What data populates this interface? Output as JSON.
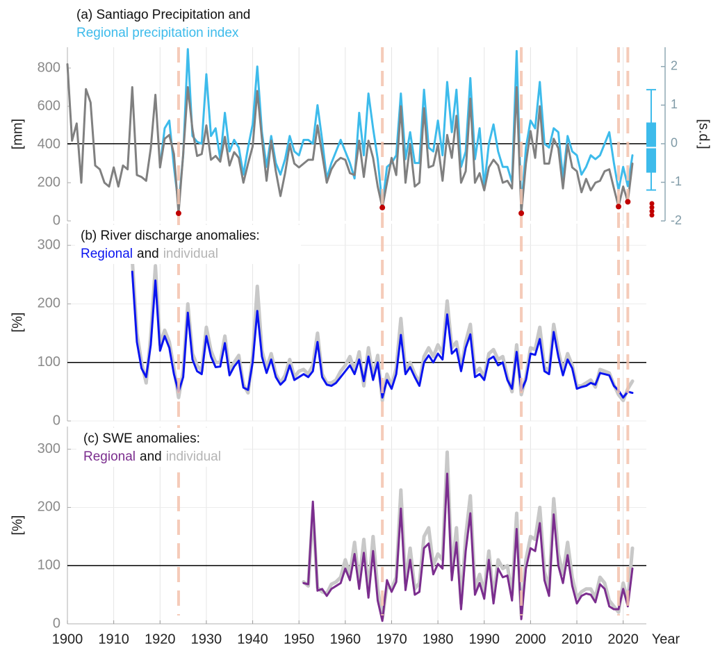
{
  "chart_data": {
    "type": "line",
    "xlabel": "Year",
    "xlim": [
      1900,
      2025
    ],
    "xticks": [
      1900,
      1910,
      1920,
      1930,
      1940,
      1950,
      1960,
      1970,
      1980,
      1990,
      2000,
      2010,
      2020
    ],
    "x": [
      1900,
      1901,
      1902,
      1903,
      1904,
      1905,
      1906,
      1907,
      1908,
      1909,
      1910,
      1911,
      1912,
      1913,
      1914,
      1915,
      1916,
      1917,
      1918,
      1919,
      1920,
      1921,
      1922,
      1923,
      1924,
      1925,
      1926,
      1927,
      1928,
      1929,
      1930,
      1931,
      1932,
      1933,
      1934,
      1935,
      1936,
      1937,
      1938,
      1939,
      1940,
      1941,
      1942,
      1943,
      1944,
      1945,
      1946,
      1947,
      1948,
      1949,
      1950,
      1951,
      1952,
      1953,
      1954,
      1955,
      1956,
      1957,
      1958,
      1959,
      1960,
      1961,
      1962,
      1963,
      1964,
      1965,
      1966,
      1967,
      1968,
      1969,
      1970,
      1971,
      1972,
      1973,
      1974,
      1975,
      1976,
      1977,
      1978,
      1979,
      1980,
      1981,
      1982,
      1983,
      1984,
      1985,
      1986,
      1987,
      1988,
      1989,
      1990,
      1991,
      1992,
      1993,
      1994,
      1995,
      1996,
      1997,
      1998,
      1999,
      2000,
      2001,
      2002,
      2003,
      2004,
      2005,
      2006,
      2007,
      2008,
      2009,
      2010,
      2011,
      2012,
      2013,
      2014,
      2015,
      2016,
      2017,
      2018,
      2019,
      2020,
      2021,
      2022
    ],
    "dry_years": [
      1924,
      1968,
      1998,
      2019,
      2021
    ],
    "dry_color": "#f4c3ad",
    "highlight_color": "#c00000",
    "panels": [
      {
        "title": "(a) Santiago Precipitation and",
        "ylabel": "[mm]",
        "ylim": [
          0,
          909
        ],
        "yticks": [
          0,
          200,
          400,
          600,
          800
        ],
        "y2label": "[s.d.]",
        "y2lim": [
          -2,
          2.5
        ],
        "y2ticks": [
          -2,
          -1,
          0,
          1,
          2
        ],
        "grid": true,
        "refline": {
          "value": 0,
          "axis": "y2"
        },
        "series": [
          {
            "color": "#808080",
            "values": [
              820,
              420,
              510,
              200,
              690,
              620,
              290,
              270,
              200,
              180,
              280,
              180,
              290,
              270,
              700,
              240,
              230,
              210,
              380,
              660,
              280,
              430,
              450,
              350,
              40,
              350,
              700,
              480,
              340,
              350,
              500,
              320,
              340,
              310,
              440,
              290,
              360,
              330,
              200,
              300,
              390,
              680,
              430,
              210,
              420,
              260,
              130,
              250,
              400,
              300,
              280,
              300,
              320,
              320,
              500,
              350,
              200,
              270,
              310,
              330,
              320,
              250,
              240,
              420,
              230,
              420,
              330,
              180,
              70,
              200,
              330,
              240,
              600,
              200,
              400,
              180,
              200,
              590,
              280,
              290,
              400,
              210,
              450,
              330,
              550,
              200,
              260,
              640,
              200,
              250,
              160,
              280,
              320,
              290,
              200,
              210,
              170,
              700,
              40,
              300,
              470,
              330,
              600,
              300,
              300,
              430,
              380,
              170,
              400,
              280,
              260,
              150,
              220,
              160,
              200,
              210,
              260,
              270,
              170,
              75,
              180,
              100,
              300
            ]
          },
          {
            "name": "Regional precipitation index",
            "color": "#3dbbeb",
            "axis": "y2",
            "values": [
              null,
              null,
              null,
              null,
              null,
              null,
              null,
              null,
              null,
              null,
              null,
              null,
              null,
              null,
              null,
              null,
              null,
              null,
              null,
              null,
              -0.6,
              0.4,
              0.6,
              -0.6,
              -1.6,
              -0.3,
              2.45,
              0.2,
              0.05,
              0,
              1.8,
              0.2,
              0.4,
              -0.4,
              0.8,
              -0.2,
              0.1,
              -0.1,
              -0.8,
              -0.1,
              0.5,
              2.0,
              0.3,
              -0.6,
              0.2,
              -0.5,
              -0.8,
              -0.4,
              0.2,
              -0.2,
              -0.3,
              0.1,
              0.1,
              0,
              1.0,
              0.1,
              -0.9,
              -0.5,
              -0.2,
              0.1,
              -0.2,
              -0.5,
              -0.9,
              0.8,
              -0.3,
              1.3,
              0.4,
              -0.4,
              -1.6,
              -0.6,
              -0.5,
              -0.3,
              1.3,
              -0.4,
              0.3,
              -0.5,
              -0.5,
              1.4,
              -0.1,
              -0.2,
              0.6,
              -0.3,
              1.6,
              0.3,
              1.4,
              -0.6,
              -0.2,
              1.7,
              -0.4,
              0.4,
              -1.1,
              0,
              0.5,
              -0.2,
              -0.6,
              -0.6,
              -1.0,
              2.4,
              -1.7,
              -0.1,
              0.6,
              0.4,
              1.6,
              0,
              -0.1,
              0.4,
              0.3,
              -0.9,
              0.2,
              -0.2,
              -0.3,
              -0.8,
              -0.6,
              -0.3,
              -0.4,
              -0.3,
              0,
              0.3,
              -0.5,
              -1.2,
              -0.6,
              -1.1,
              -0.3
            ]
          }
        ],
        "boxplot": {
          "color": "#3dbbeb",
          "whislo": -1.2,
          "q1": -0.75,
          "med": -0.1,
          "q3": 0.55,
          "whishi": 1.4,
          "outliers": [
            -1.55,
            -1.65,
            -1.75,
            -1.85
          ]
        }
      },
      {
        "title": "(b) River discharge anomalies:",
        "joiner": "and",
        "ylabel": "[%]",
        "ylim": [
          0,
          337
        ],
        "yticks": [
          0,
          100,
          200,
          300
        ],
        "grid": true,
        "refline": {
          "value": 100,
          "axis": "y"
        },
        "series": [
          {
            "name": "Regional",
            "color": "#0a14f0",
            "values": [
              null,
              null,
              null,
              null,
              null,
              null,
              null,
              null,
              null,
              null,
              null,
              null,
              null,
              null,
              255,
              135,
              90,
              75,
              130,
              240,
              120,
              145,
              125,
              80,
              50,
              75,
              185,
              105,
              85,
              80,
              145,
              110,
              92,
              93,
              133,
              78,
              93,
              103,
              57,
              53,
              100,
              188,
              110,
              82,
              105,
              75,
              62,
              70,
              95,
              70,
              75,
              80,
              75,
              85,
              135,
              75,
              62,
              60,
              65,
              75,
              85,
              95,
              80,
              105,
              68,
              110,
              70,
              100,
              40,
              70,
              55,
              80,
              147,
              80,
              92,
              75,
              60,
              100,
              112,
              100,
              115,
              105,
              182,
              115,
              123,
              85,
              125,
              148,
              75,
              80,
              70,
              105,
              110,
              95,
              100,
              70,
              55,
              118,
              52,
              70,
              115,
              113,
              140,
              85,
              80,
              152,
              110,
              78,
              105,
              90,
              55,
              58,
              60,
              65,
              62,
              82,
              80,
              78,
              60,
              52,
              40,
              50,
              48
            ]
          },
          {
            "name": "individual",
            "color": "#c8c8c8",
            "values": [
              null,
              null,
              null,
              null,
              null,
              null,
              null,
              null,
              null,
              null,
              null,
              null,
              null,
              null,
              275,
              150,
              100,
              65,
              145,
              265,
              130,
              155,
              135,
              90,
              40,
              85,
              200,
              115,
              95,
              85,
              160,
              120,
              100,
              100,
              145,
              85,
              100,
              112,
              62,
              48,
              110,
              230,
              120,
              90,
              115,
              80,
              65,
              78,
              105,
              75,
              85,
              88,
              80,
              95,
              150,
              80,
              65,
              65,
              70,
              85,
              95,
              110,
              85,
              118,
              60,
              125,
              75,
              112,
              35,
              80,
              60,
              90,
              175,
              85,
              100,
              80,
              65,
              110,
              125,
              110,
              130,
              115,
              205,
              125,
              135,
              90,
              135,
              165,
              82,
              90,
              75,
              115,
              122,
              105,
              110,
              75,
              50,
              130,
              45,
              75,
              125,
              122,
              160,
              92,
              85,
              165,
              120,
              85,
              115,
              95,
              60,
              60,
              65,
              70,
              58,
              88,
              85,
              82,
              62,
              45,
              35,
              55,
              68
            ]
          }
        ]
      },
      {
        "title": "(c) SWE anomalies:",
        "joiner": "and",
        "ylabel": "[%]",
        "ylim": [
          0,
          339
        ],
        "yticks": [
          0,
          100,
          200,
          300
        ],
        "grid": true,
        "refline": {
          "value": 100,
          "axis": "y"
        },
        "series": [
          {
            "name": "Regional",
            "color": "#7b2d8e",
            "values": [
              null,
              null,
              null,
              null,
              null,
              null,
              null,
              null,
              null,
              null,
              null,
              null,
              null,
              null,
              null,
              null,
              null,
              null,
              null,
              null,
              null,
              null,
              null,
              null,
              null,
              null,
              null,
              null,
              null,
              null,
              null,
              null,
              null,
              null,
              null,
              null,
              null,
              null,
              null,
              null,
              null,
              null,
              null,
              null,
              null,
              null,
              null,
              null,
              null,
              null,
              null,
              70,
              68,
              210,
              57,
              60,
              48,
              60,
              65,
              70,
              95,
              75,
              120,
              60,
              122,
              45,
              125,
              40,
              5,
              75,
              55,
              72,
              198,
              58,
              110,
              50,
              55,
              130,
              138,
              85,
              103,
              95,
              258,
              75,
              140,
              25,
              125,
              190,
              50,
              70,
              43,
              110,
              35,
              95,
              80,
              83,
              40,
              163,
              8,
              95,
              130,
              125,
              173,
              75,
              48,
              188,
              100,
              70,
              118,
              65,
              35,
              48,
              52,
              50,
              37,
              68,
              60,
              30,
              25,
              25,
              60,
              30,
              95
            ]
          },
          {
            "name": "individual",
            "color": "#c8c8c8",
            "values": [
              null,
              null,
              null,
              null,
              null,
              null,
              null,
              null,
              null,
              null,
              null,
              null,
              null,
              null,
              null,
              null,
              null,
              null,
              null,
              null,
              null,
              null,
              null,
              null,
              null,
              null,
              null,
              null,
              null,
              null,
              null,
              null,
              null,
              null,
              null,
              null,
              null,
              null,
              null,
              null,
              null,
              null,
              null,
              null,
              null,
              null,
              null,
              null,
              null,
              null,
              null,
              72,
              65,
              195,
              62,
              55,
              52,
              68,
              72,
              80,
              110,
              85,
              140,
              70,
              145,
              55,
              150,
              60,
              10,
              65,
              60,
              80,
              230,
              70,
              130,
              60,
              70,
              150,
              165,
              100,
              120,
              110,
              295,
              90,
              165,
              35,
              150,
              220,
              60,
              85,
              55,
              125,
              45,
              110,
              95,
              100,
              50,
              190,
              15,
              110,
              150,
              145,
              200,
              90,
              60,
              215,
              120,
              85,
              140,
              80,
              45,
              55,
              60,
              60,
              45,
              80,
              70,
              40,
              30,
              20,
              70,
              40,
              130
            ]
          }
        ]
      }
    ]
  }
}
